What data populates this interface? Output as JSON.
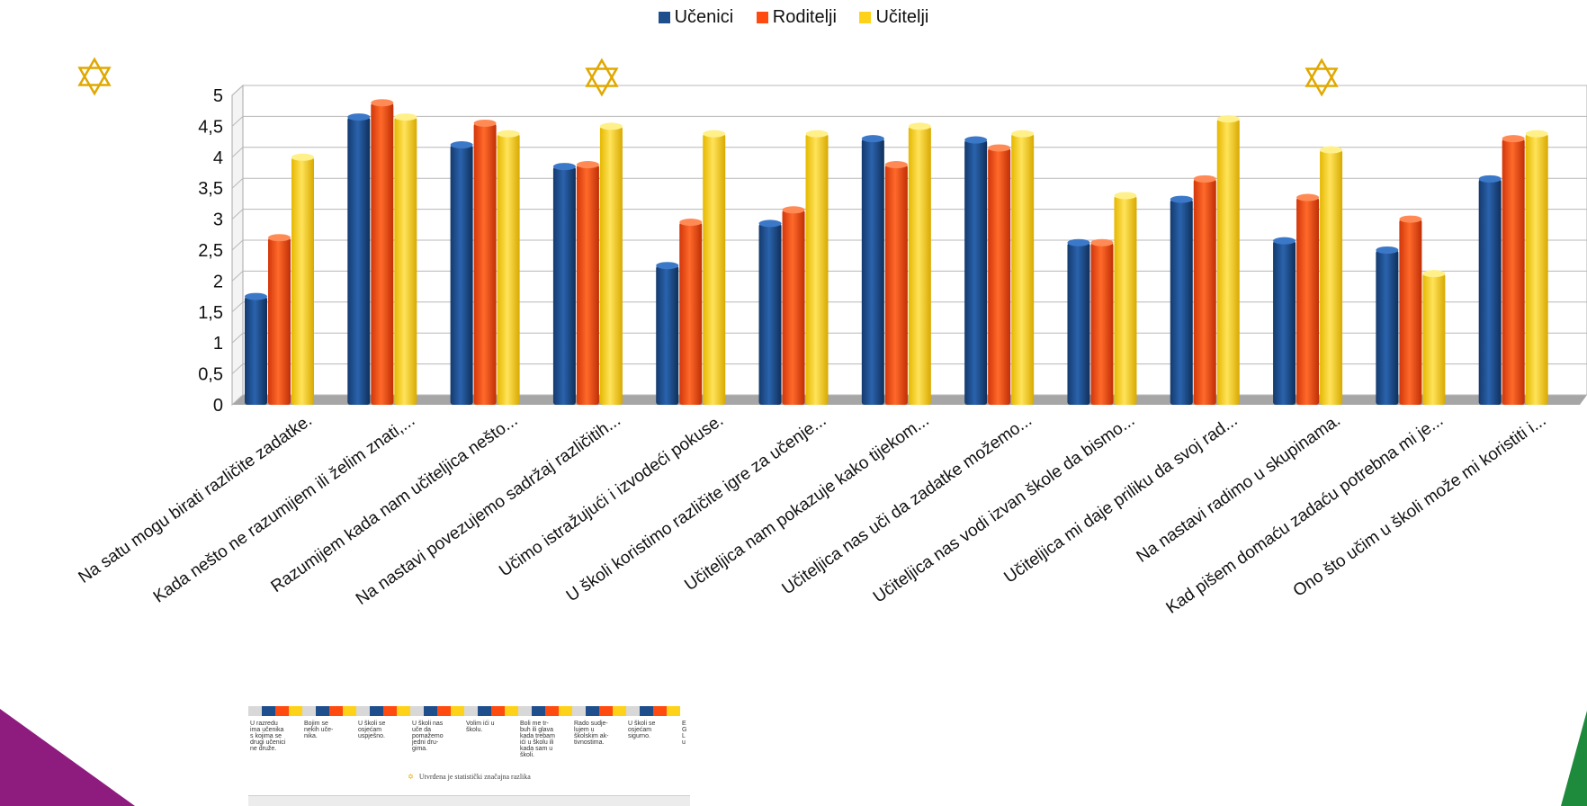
{
  "colors": {
    "ucenici": "#1f4e8c",
    "roditelji": "#ff4a10",
    "ucitelji": "#ffd21a",
    "star": "#e0a800",
    "purple_corner": "#8e1b7e",
    "green_corner": "#1e8a3c"
  },
  "legend": [
    {
      "label": "Učenici",
      "color": "#1f4e8c"
    },
    {
      "label": "Roditelji",
      "color": "#ff4a10"
    },
    {
      "label": "Učitelji",
      "color": "#ffd21a"
    }
  ],
  "significance_markers": [
    {
      "near_category_index": 3
    },
    {
      "near_category_index": 10
    }
  ],
  "chart_data": {
    "type": "bar",
    "title": "",
    "xlabel": "",
    "ylabel": "",
    "ylim": [
      0,
      5
    ],
    "yticks": [
      "0",
      "0,5",
      "1",
      "1,5",
      "2",
      "2,5",
      "3",
      "3,5",
      "4",
      "4,5",
      "5"
    ],
    "grid": true,
    "legend_position": "top",
    "categories": [
      "Na satu mogu birati različite zadatke.",
      "Kada nešto ne razumijem ili želim znati,...",
      "Razumijem kada nam učiteljica nešto...",
      "Na nastavi povezujemo sadržaj različitih...",
      "Učimo istražujući i izvodeći pokuse.",
      "U školi koristimo različite igre za učenje...",
      "Učiteljica nam pokazuje kako tijekom...",
      "Učiteljica nas uči da zadatke možemo...",
      "Učiteljica nas vodi izvan škole da bismo...",
      "Učiteljica mi daje priliku da svoj rad...",
      "Na nastavi radimo u skupinama.",
      "Kad pišem domaću zadaću potrebna mi je...",
      "Ono što učim u školi može mi koristiti i..."
    ],
    "series": [
      {
        "name": "Učenici",
        "values": [
          1.75,
          4.65,
          4.2,
          3.85,
          2.25,
          2.93,
          4.3,
          4.28,
          2.62,
          3.32,
          2.65,
          2.5,
          3.65
        ]
      },
      {
        "name": "Roditelji",
        "values": [
          2.7,
          4.88,
          4.55,
          3.88,
          2.95,
          3.15,
          3.88,
          4.15,
          2.62,
          3.65,
          3.35,
          3.0,
          4.3
        ]
      },
      {
        "name": "Učitelji",
        "values": [
          4.0,
          4.65,
          4.38,
          4.5,
          4.38,
          4.38,
          4.5,
          4.38,
          3.38,
          4.62,
          4.12,
          2.12,
          4.38
        ]
      }
    ]
  },
  "inset": {
    "cells": [
      "U razredu\nima učenika\ns kojima se\ndrugi učenici\nne druže.",
      "Bojim se\nnekih uče-\nnika.",
      "U školi se\nosjećam\nuspješno.",
      "U školi nas\nuče da\npomažemo\njedni dru-\ngima.",
      "Volim ići u\nškolu.",
      "Boli me tr-\nbuh ili glava\nkada trebam\nići u školu ili\nkada sam u\nškoli.",
      "Rado sudje-\nlujem u\nškolskim ak-\ntivnostima.",
      "U školi se\nosjećam\nsigurno.",
      "E\nG\nL\nu"
    ],
    "note": "Utvrđena je statistički značajna razlika"
  }
}
